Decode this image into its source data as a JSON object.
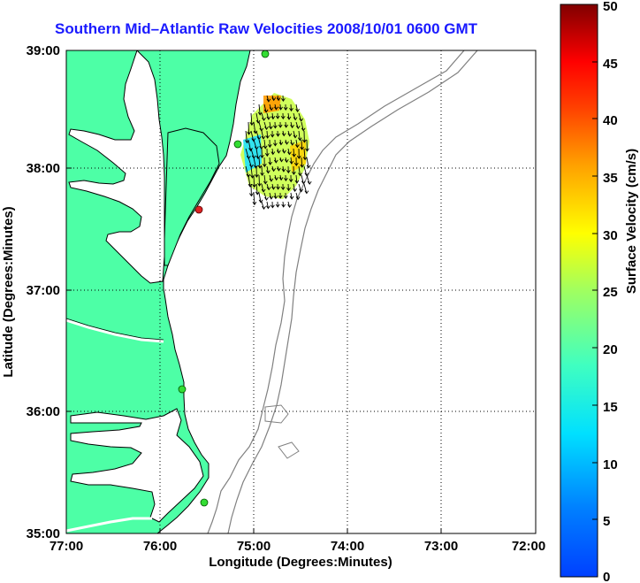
{
  "title": "Southern Mid–Atlantic Raw Velocities 2008/10/01 0600 GMT",
  "x_axis": {
    "label": "Longitude (Degrees:Minutes)",
    "ticks": [
      "77:00",
      "76:00",
      "75:00",
      "74:00",
      "73:00",
      "72:00"
    ]
  },
  "y_axis": {
    "label": "Latitude (Degrees:Minutes)",
    "ticks": [
      "39:00",
      "38:00",
      "37:00",
      "36:00",
      "35:00"
    ]
  },
  "colorbar": {
    "label": "Surface Velocity (cm/s)",
    "ticks": [
      "50",
      "45",
      "40",
      "35",
      "30",
      "25",
      "20",
      "15",
      "10",
      "5",
      "0"
    ],
    "min": 0,
    "max": 50,
    "scale": "jet"
  },
  "map": {
    "lon_range": [
      -77,
      -72
    ],
    "lat_range": [
      35,
      39
    ],
    "grid": "dotted",
    "land_color": "#4dffa6",
    "water_color": "#ffffff",
    "coastline_color": "#000000",
    "bathymetry_color": "#808080"
  },
  "stations": [
    {
      "status": "active",
      "color": "#33dd33"
    },
    {
      "status": "active",
      "color": "#33dd33"
    },
    {
      "status": "inactive",
      "color": "#dd2222"
    },
    {
      "status": "active",
      "color": "#33dd33"
    },
    {
      "status": "active",
      "color": "#33dd33"
    }
  ]
}
